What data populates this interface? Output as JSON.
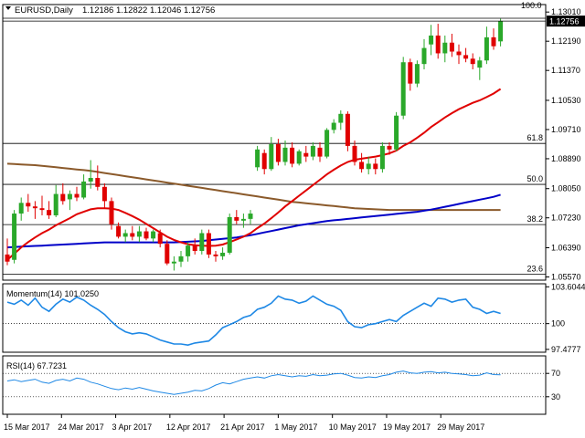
{
  "header": {
    "symbol_info": "EURUSD,Daily",
    "ohlc": "1.12186 1.12822 1.12046 1.12756",
    "arrow_icon": "triangle-down-icon"
  },
  "colors": {
    "background": "#ffffff",
    "bull": "#2aa82a",
    "bear": "#e00000",
    "sma20": "#e00000",
    "sma100": "#0000c8",
    "sma200": "#8b5a2b",
    "oscillator": "#1e88e5",
    "grid": "#000000"
  },
  "price_tag": "1.12756",
  "top_marker": "100.0",
  "momentum_label": "Momentum(14) 101.0250",
  "rsi_label": "RSI(14) 67.7231",
  "chart_data": [
    {
      "type": "candlestick",
      "symbol": "EURUSD",
      "timeframe": "Daily",
      "price_axis_ticks": [
        "1.13010",
        "1.12190",
        "1.11370",
        "1.10530",
        "1.09710",
        "1.08890",
        "1.08050",
        "1.07230",
        "1.06390",
        "1.05570"
      ],
      "ylim": [
        1.0548,
        1.1322
      ],
      "x_ticks": [
        "15 Mar 2017",
        "24 Mar 2017",
        "3 Apr 2017",
        "12 Apr 2017",
        "21 Apr 2017",
        "1 May 2017",
        "10 May 2017",
        "19 May 2017",
        "29 May 2017"
      ],
      "candles": [
        {
          "o": 1.062,
          "h": 1.0665,
          "l": 1.059,
          "c": 1.06
        },
        {
          "o": 1.0605,
          "h": 1.0745,
          "l": 1.0595,
          "c": 1.0735
        },
        {
          "o": 1.0735,
          "h": 1.078,
          "l": 1.0715,
          "c": 1.0765
        },
        {
          "o": 1.0765,
          "h": 1.079,
          "l": 1.074,
          "c": 1.0755
        },
        {
          "o": 1.0755,
          "h": 1.077,
          "l": 1.072,
          "c": 1.075
        },
        {
          "o": 1.075,
          "h": 1.0785,
          "l": 1.073,
          "c": 1.0745
        },
        {
          "o": 1.0745,
          "h": 1.077,
          "l": 1.072,
          "c": 1.073
        },
        {
          "o": 1.073,
          "h": 1.0815,
          "l": 1.0725,
          "c": 1.079
        },
        {
          "o": 1.079,
          "h": 1.082,
          "l": 1.076,
          "c": 1.077
        },
        {
          "o": 1.0775,
          "h": 1.08,
          "l": 1.0745,
          "c": 1.079
        },
        {
          "o": 1.079,
          "h": 1.081,
          "l": 1.077,
          "c": 1.078
        },
        {
          "o": 1.078,
          "h": 1.0845,
          "l": 1.0775,
          "c": 1.0825
        },
        {
          "o": 1.0825,
          "h": 1.0885,
          "l": 1.0805,
          "c": 1.0835
        },
        {
          "o": 1.0835,
          "h": 1.087,
          "l": 1.08,
          "c": 1.081
        },
        {
          "o": 1.081,
          "h": 1.082,
          "l": 1.075,
          "c": 1.077
        },
        {
          "o": 1.077,
          "h": 1.078,
          "l": 1.069,
          "c": 1.0705
        },
        {
          "o": 1.07,
          "h": 1.071,
          "l": 1.0665,
          "c": 1.067
        },
        {
          "o": 1.067,
          "h": 1.069,
          "l": 1.0655,
          "c": 1.068
        },
        {
          "o": 1.068,
          "h": 1.07,
          "l": 1.066,
          "c": 1.067
        },
        {
          "o": 1.067,
          "h": 1.07,
          "l": 1.0655,
          "c": 1.0685
        },
        {
          "o": 1.0685,
          "h": 1.0695,
          "l": 1.066,
          "c": 1.0665
        },
        {
          "o": 1.0665,
          "h": 1.069,
          "l": 1.0655,
          "c": 1.0685
        },
        {
          "o": 1.068,
          "h": 1.069,
          "l": 1.064,
          "c": 1.065
        },
        {
          "o": 1.065,
          "h": 1.066,
          "l": 1.059,
          "c": 1.0595
        },
        {
          "o": 1.0595,
          "h": 1.0615,
          "l": 1.0575,
          "c": 1.06
        },
        {
          "o": 1.06,
          "h": 1.063,
          "l": 1.0585,
          "c": 1.0615
        },
        {
          "o": 1.0615,
          "h": 1.0655,
          "l": 1.06,
          "c": 1.0645
        },
        {
          "o": 1.0645,
          "h": 1.0665,
          "l": 1.062,
          "c": 1.063
        },
        {
          "o": 1.063,
          "h": 1.069,
          "l": 1.062,
          "c": 1.068
        },
        {
          "o": 1.068,
          "h": 1.069,
          "l": 1.061,
          "c": 1.062
        },
        {
          "o": 1.062,
          "h": 1.063,
          "l": 1.06,
          "c": 1.0615
        },
        {
          "o": 1.0615,
          "h": 1.064,
          "l": 1.0605,
          "c": 1.0625
        },
        {
          "o": 1.0625,
          "h": 1.0735,
          "l": 1.062,
          "c": 1.0725
        },
        {
          "o": 1.0725,
          "h": 1.0745,
          "l": 1.0705,
          "c": 1.0715
        },
        {
          "o": 1.0715,
          "h": 1.0735,
          "l": 1.0695,
          "c": 1.072
        },
        {
          "o": 1.072,
          "h": 1.0745,
          "l": 1.0705,
          "c": 1.0735
        },
        {
          "o": 1.0865,
          "h": 1.0925,
          "l": 1.0855,
          "c": 1.0915
        },
        {
          "o": 1.0905,
          "h": 1.0915,
          "l": 1.0845,
          "c": 1.086
        },
        {
          "o": 1.086,
          "h": 1.095,
          "l": 1.0855,
          "c": 1.093
        },
        {
          "o": 1.093,
          "h": 1.0945,
          "l": 1.087,
          "c": 1.088
        },
        {
          "o": 1.088,
          "h": 1.094,
          "l": 1.087,
          "c": 1.092
        },
        {
          "o": 1.092,
          "h": 1.0935,
          "l": 1.0865,
          "c": 1.0875
        },
        {
          "o": 1.0875,
          "h": 1.0915,
          "l": 1.087,
          "c": 1.091
        },
        {
          "o": 1.0905,
          "h": 1.0925,
          "l": 1.088,
          "c": 1.0895
        },
        {
          "o": 1.0895,
          "h": 1.0935,
          "l": 1.0885,
          "c": 1.0925
        },
        {
          "o": 1.092,
          "h": 1.0935,
          "l": 1.088,
          "c": 1.0895
        },
        {
          "o": 1.0895,
          "h": 1.0975,
          "l": 1.089,
          "c": 1.097
        },
        {
          "o": 1.097,
          "h": 1.1,
          "l": 1.096,
          "c": 1.099
        },
        {
          "o": 1.099,
          "h": 1.1025,
          "l": 1.097,
          "c": 1.1015
        },
        {
          "o": 1.1015,
          "h": 1.1022,
          "l": 1.091,
          "c": 1.0925
        },
        {
          "o": 1.0925,
          "h": 1.094,
          "l": 1.087,
          "c": 1.088
        },
        {
          "o": 1.088,
          "h": 1.0905,
          "l": 1.085,
          "c": 1.086
        },
        {
          "o": 1.086,
          "h": 1.0895,
          "l": 1.0845,
          "c": 1.0875
        },
        {
          "o": 1.0875,
          "h": 1.089,
          "l": 1.0845,
          "c": 1.086
        },
        {
          "o": 1.086,
          "h": 1.0935,
          "l": 1.085,
          "c": 1.0925
        },
        {
          "o": 1.0925,
          "h": 1.0935,
          "l": 1.09,
          "c": 1.0915
        },
        {
          "o": 1.0915,
          "h": 1.102,
          "l": 1.091,
          "c": 1.101
        },
        {
          "o": 1.101,
          "h": 1.1175,
          "l": 1.1,
          "c": 1.116
        },
        {
          "o": 1.116,
          "h": 1.117,
          "l": 1.108,
          "c": 1.11
        },
        {
          "o": 1.11,
          "h": 1.1165,
          "l": 1.109,
          "c": 1.1155
        },
        {
          "o": 1.1155,
          "h": 1.1225,
          "l": 1.114,
          "c": 1.12
        },
        {
          "o": 1.121,
          "h": 1.1265,
          "l": 1.118,
          "c": 1.1235
        },
        {
          "o": 1.1235,
          "h": 1.1268,
          "l": 1.117,
          "c": 1.1185
        },
        {
          "o": 1.1185,
          "h": 1.1235,
          "l": 1.116,
          "c": 1.1215
        },
        {
          "o": 1.1215,
          "h": 1.124,
          "l": 1.1175,
          "c": 1.119
        },
        {
          "o": 1.119,
          "h": 1.121,
          "l": 1.1155,
          "c": 1.118
        },
        {
          "o": 1.118,
          "h": 1.12,
          "l": 1.116,
          "c": 1.117
        },
        {
          "o": 1.117,
          "h": 1.1185,
          "l": 1.114,
          "c": 1.1155
        },
        {
          "o": 1.1145,
          "h": 1.1175,
          "l": 1.111,
          "c": 1.1165
        },
        {
          "o": 1.1165,
          "h": 1.126,
          "l": 1.1155,
          "c": 1.123
        },
        {
          "o": 1.123,
          "h": 1.1255,
          "l": 1.1195,
          "c": 1.1205
        },
        {
          "o": 1.12186,
          "h": 1.12822,
          "l": 1.12046,
          "c": 1.12756
        }
      ],
      "sma20": [
        1.0605,
        1.0622,
        1.064,
        1.0655,
        1.0668,
        1.068,
        1.069,
        1.0702,
        1.0712,
        1.0722,
        1.0733,
        1.074,
        1.0747,
        1.075,
        1.075,
        1.0749,
        1.0745,
        1.0737,
        1.0728,
        1.0718,
        1.0706,
        1.0694,
        1.0682,
        1.067,
        1.0661,
        1.0654,
        1.0649,
        1.0646,
        1.0645,
        1.0644,
        1.0645,
        1.0648,
        1.0655,
        1.0662,
        1.067,
        1.068,
        1.0694,
        1.0707,
        1.0722,
        1.0738,
        1.0755,
        1.077,
        1.0785,
        1.08,
        1.0815,
        1.083,
        1.0845,
        1.0858,
        1.087,
        1.088,
        1.0886,
        1.0889,
        1.0892,
        1.0895,
        1.0899,
        1.0904,
        1.0912,
        1.0925,
        1.0935,
        1.0948,
        1.0962,
        1.0978,
        1.0991,
        1.1005,
        1.1017,
        1.1028,
        1.1037,
        1.1046,
        1.1053,
        1.1062,
        1.1072,
        1.1085
      ],
      "sma100": [
        1.064,
        1.0641,
        1.0642,
        1.0643,
        1.0644,
        1.0645,
        1.0646,
        1.0647,
        1.0648,
        1.0649,
        1.065,
        1.0651,
        1.0652,
        1.0653,
        1.0654,
        1.0654,
        1.0654,
        1.0654,
        1.0654,
        1.0654,
        1.0654,
        1.0654,
        1.0654,
        1.0654,
        1.0654,
        1.0655,
        1.0656,
        1.0657,
        1.0658,
        1.066,
        1.0662,
        1.0664,
        1.0666,
        1.0668,
        1.0671,
        1.0674,
        1.0678,
        1.0682,
        1.0686,
        1.069,
        1.0694,
        1.0698,
        1.0702,
        1.0705,
        1.0708,
        1.0711,
        1.0714,
        1.0716,
        1.0718,
        1.072,
        1.0722,
        1.0724,
        1.0726,
        1.0728,
        1.073,
        1.0732,
        1.0734,
        1.0736,
        1.0738,
        1.074,
        1.0743,
        1.0746,
        1.075,
        1.0754,
        1.0758,
        1.0762,
        1.0766,
        1.077,
        1.0774,
        1.0778,
        1.0782,
        1.0788
      ],
      "sma200": [
        1.0875,
        1.0874,
        1.0873,
        1.0872,
        1.0871,
        1.0869,
        1.0867,
        1.0865,
        1.0863,
        1.0861,
        1.0859,
        1.0857,
        1.0855,
        1.0852,
        1.0849,
        1.0846,
        1.0843,
        1.084,
        1.0837,
        1.0834,
        1.0831,
        1.0828,
        1.0825,
        1.0822,
        1.0819,
        1.0816,
        1.0813,
        1.081,
        1.0807,
        1.0804,
        1.0801,
        1.0798,
        1.0795,
        1.0792,
        1.0789,
        1.0786,
        1.0783,
        1.078,
        1.0777,
        1.0774,
        1.0771,
        1.0768,
        1.0766,
        1.0764,
        1.0762,
        1.076,
        1.0758,
        1.0756,
        1.0754,
        1.0752,
        1.075,
        1.0749,
        1.0748,
        1.0747,
        1.0746,
        1.0745,
        1.0745,
        1.0745,
        1.0745,
        1.0745,
        1.0745,
        1.0745,
        1.0745,
        1.0745,
        1.0745,
        1.0745,
        1.0745,
        1.0745,
        1.0745,
        1.0745,
        1.0745,
        1.0745
      ],
      "fib_levels": [
        {
          "label": "61.8",
          "price": 1.0932
        },
        {
          "label": "50.0",
          "price": 1.0817
        },
        {
          "label": "38.2",
          "price": 1.0704
        },
        {
          "label": "23.6",
          "price": 1.0565
        }
      ]
    },
    {
      "type": "line",
      "name": "Momentum(14)",
      "axis_ticks": [
        "103.6044",
        "100",
        "97.4777"
      ],
      "ylim": [
        97.2,
        103.9
      ],
      "values": [
        102.1,
        101.9,
        102.3,
        101.8,
        102.5,
        101.6,
        101.2,
        101.9,
        102.4,
        102.1,
        102.6,
        102.3,
        101.8,
        101.4,
        100.9,
        100.2,
        99.6,
        99.2,
        99.0,
        99.1,
        99.0,
        98.7,
        98.4,
        98.2,
        98.0,
        98.0,
        97.9,
        98.1,
        98.2,
        98.3,
        98.9,
        99.6,
        99.9,
        100.2,
        100.6,
        100.8,
        101.4,
        101.6,
        102.0,
        102.7,
        102.4,
        102.3,
        102.0,
        102.2,
        102.7,
        102.3,
        101.9,
        101.7,
        101.3,
        100.2,
        99.7,
        99.6,
        99.9,
        100.0,
        100.2,
        100.4,
        100.2,
        100.8,
        101.2,
        101.6,
        102.0,
        101.7,
        102.5,
        102.4,
        102.1,
        102.3,
        102.4,
        101.6,
        101.4,
        101.0,
        101.2,
        101.0
      ]
    },
    {
      "type": "line",
      "name": "RSI(14)",
      "axis_ticks": [
        "70",
        "30"
      ],
      "ylim": [
        0,
        100
      ],
      "values": [
        57,
        59,
        56,
        58,
        60,
        55,
        53,
        58,
        60,
        57,
        62,
        60,
        55,
        52,
        48,
        44,
        42,
        45,
        43,
        46,
        43,
        40,
        38,
        36,
        34,
        36,
        38,
        41,
        40,
        44,
        50,
        54,
        52,
        56,
        60,
        62,
        64,
        62,
        66,
        68,
        66,
        64,
        66,
        65,
        68,
        66,
        67,
        69,
        70,
        67,
        63,
        62,
        64,
        63,
        66,
        68,
        72,
        74,
        71,
        70,
        72,
        73,
        71,
        72,
        70,
        69,
        68,
        66,
        67,
        71,
        68,
        67.7
      ]
    }
  ]
}
